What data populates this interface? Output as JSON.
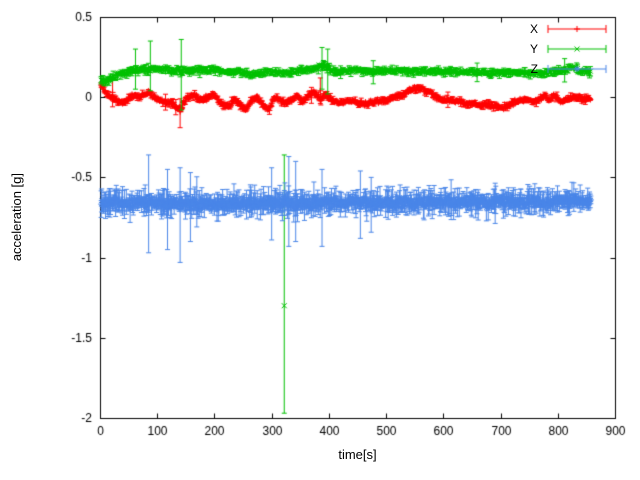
{
  "chart_data": {
    "type": "scatter",
    "plot_style": "errorbars",
    "title": "",
    "xlabel": "time[s]",
    "ylabel": "acceleration [g]",
    "xlim": [
      0,
      900
    ],
    "ylim": [
      -2,
      0.5
    ],
    "grid": false,
    "background": "#ffffff",
    "axis_color": "#000000",
    "legend": {
      "position": "top-right"
    },
    "xticks": {
      "values": [
        0,
        100,
        200,
        300,
        400,
        500,
        600,
        700,
        800,
        900
      ],
      "labels": [
        "0",
        "100",
        "200",
        "300",
        "400",
        "500",
        "600",
        "700",
        "800",
        "900"
      ]
    },
    "yticks": {
      "values": [
        -2,
        -1.5,
        -1,
        -0.5,
        0,
        0.5
      ],
      "labels": [
        "-2",
        "-1.5",
        "-1",
        "-0.5",
        "0",
        "0.5"
      ]
    },
    "seed": 1337,
    "sampling": {
      "start": 2,
      "end": 858
    },
    "series": [
      {
        "name": "X",
        "color": "#ff0000",
        "marker": "+",
        "step": 1.5,
        "noise": 0.01,
        "err": 0.015,
        "trend": [
          [
            2,
            0.08
          ],
          [
            10,
            0.03
          ],
          [
            25,
            -0.01
          ],
          [
            40,
            -0.04
          ],
          [
            55,
            0.01
          ],
          [
            70,
            0.0
          ],
          [
            85,
            0.03
          ],
          [
            100,
            -0.01
          ],
          [
            115,
            -0.03
          ],
          [
            130,
            -0.05
          ],
          [
            140,
            -0.08
          ],
          [
            150,
            -0.01
          ],
          [
            165,
            0.01
          ],
          [
            180,
            -0.02
          ],
          [
            195,
            0.02
          ],
          [
            210,
            -0.03
          ],
          [
            225,
            -0.07
          ],
          [
            235,
            0.0
          ],
          [
            245,
            -0.05
          ],
          [
            255,
            -0.08
          ],
          [
            265,
            -0.02
          ],
          [
            275,
            0.0
          ],
          [
            285,
            -0.05
          ],
          [
            295,
            -0.07
          ],
          [
            305,
            0.0
          ],
          [
            315,
            -0.02
          ],
          [
            325,
            -0.04
          ],
          [
            335,
            -0.01
          ],
          [
            345,
            0.0
          ],
          [
            355,
            -0.03
          ],
          [
            365,
            0.01
          ],
          [
            375,
            0.03
          ],
          [
            385,
            -0.01
          ],
          [
            395,
            0.02
          ],
          [
            405,
            -0.02
          ],
          [
            420,
            -0.03
          ],
          [
            440,
            -0.02
          ],
          [
            460,
            -0.04
          ],
          [
            480,
            -0.03
          ],
          [
            500,
            -0.02
          ],
          [
            515,
            0.0
          ],
          [
            530,
            0.02
          ],
          [
            545,
            0.05
          ],
          [
            560,
            0.06
          ],
          [
            575,
            0.03
          ],
          [
            590,
            0.0
          ],
          [
            605,
            -0.02
          ],
          [
            620,
            -0.02
          ],
          [
            640,
            -0.04
          ],
          [
            660,
            -0.05
          ],
          [
            680,
            -0.04
          ],
          [
            700,
            -0.07
          ],
          [
            715,
            -0.05
          ],
          [
            730,
            -0.02
          ],
          [
            745,
            -0.01
          ],
          [
            760,
            -0.03
          ],
          [
            775,
            0.01
          ],
          [
            785,
            -0.02
          ],
          [
            795,
            0.02
          ],
          [
            805,
            -0.03
          ],
          [
            815,
            -0.01
          ],
          [
            830,
            0.0
          ],
          [
            845,
            -0.01
          ],
          [
            858,
            -0.01
          ]
        ],
        "spikes": [
          {
            "t": 22,
            "y": 0.03,
            "lo": -0.06,
            "hi": 0.11
          },
          {
            "t": 140,
            "y": -0.09,
            "lo": -0.19,
            "hi": -0.01
          },
          {
            "t": 385,
            "y": 0.04,
            "lo": -0.04,
            "hi": 0.12
          }
        ]
      },
      {
        "name": "Y",
        "color": "#00c000",
        "marker": "x",
        "step": 1.5,
        "noise": 0.01,
        "err": 0.018,
        "trend": [
          [
            2,
            0.1
          ],
          [
            12,
            0.1
          ],
          [
            22,
            0.12
          ],
          [
            40,
            0.15
          ],
          [
            60,
            0.17
          ],
          [
            80,
            0.17
          ],
          [
            100,
            0.18
          ],
          [
            120,
            0.17
          ],
          [
            140,
            0.16
          ],
          [
            160,
            0.17
          ],
          [
            180,
            0.17
          ],
          [
            200,
            0.17
          ],
          [
            220,
            0.16
          ],
          [
            240,
            0.16
          ],
          [
            260,
            0.14
          ],
          [
            280,
            0.15
          ],
          [
            300,
            0.16
          ],
          [
            320,
            0.15
          ],
          [
            340,
            0.16
          ],
          [
            360,
            0.17
          ],
          [
            380,
            0.18
          ],
          [
            392,
            0.2
          ],
          [
            404,
            0.17
          ],
          [
            420,
            0.16
          ],
          [
            450,
            0.17
          ],
          [
            480,
            0.16
          ],
          [
            520,
            0.165
          ],
          [
            560,
            0.16
          ],
          [
            600,
            0.158
          ],
          [
            640,
            0.158
          ],
          [
            680,
            0.152
          ],
          [
            720,
            0.155
          ],
          [
            760,
            0.15
          ],
          [
            790,
            0.152
          ],
          [
            812,
            0.17
          ],
          [
            822,
            0.19
          ],
          [
            835,
            0.165
          ],
          [
            858,
            0.16
          ]
        ],
        "spikes": [
          {
            "t": 62,
            "y": 0.17,
            "lo": 0.05,
            "hi": 0.3
          },
          {
            "t": 88,
            "y": 0.18,
            "lo": 0.04,
            "hi": 0.35
          },
          {
            "t": 142,
            "y": 0.16,
            "lo": -0.08,
            "hi": 0.36
          },
          {
            "t": 322,
            "y": -1.3,
            "lo": -1.97,
            "hi": -0.36
          },
          {
            "t": 388,
            "y": 0.2,
            "lo": 0.05,
            "hi": 0.31
          },
          {
            "t": 398,
            "y": 0.18,
            "lo": 0.02,
            "hi": 0.3
          }
        ]
      },
      {
        "name": "Z",
        "color": "#4a86e8",
        "marker": "*",
        "step": 1.1,
        "noise": 0.022,
        "err": 0.055,
        "trend": [
          [
            2,
            -0.655
          ],
          [
            100,
            -0.66
          ],
          [
            200,
            -0.665
          ],
          [
            300,
            -0.66
          ],
          [
            400,
            -0.66
          ],
          [
            500,
            -0.658
          ],
          [
            600,
            -0.652
          ],
          [
            700,
            -0.65
          ],
          [
            800,
            -0.648
          ],
          [
            858,
            -0.648
          ]
        ],
        "spikes": [
          {
            "t": 85,
            "y": -0.66,
            "lo": -0.97,
            "hi": -0.36
          },
          {
            "t": 118,
            "y": -0.68,
            "lo": -0.95,
            "hi": -0.45
          },
          {
            "t": 140,
            "y": -0.7,
            "lo": -1.03,
            "hi": -0.44
          },
          {
            "t": 158,
            "y": -0.67,
            "lo": -0.9,
            "hi": -0.47
          },
          {
            "t": 300,
            "y": -0.66,
            "lo": -0.89,
            "hi": -0.44
          },
          {
            "t": 330,
            "y": -0.65,
            "lo": -0.93,
            "hi": -0.37
          },
          {
            "t": 342,
            "y": -0.62,
            "lo": -0.9,
            "hi": -0.4
          },
          {
            "t": 388,
            "y": -0.67,
            "lo": -0.93,
            "hi": -0.45
          },
          {
            "t": 455,
            "y": -0.66,
            "lo": -0.88,
            "hi": -0.46
          }
        ]
      }
    ]
  }
}
